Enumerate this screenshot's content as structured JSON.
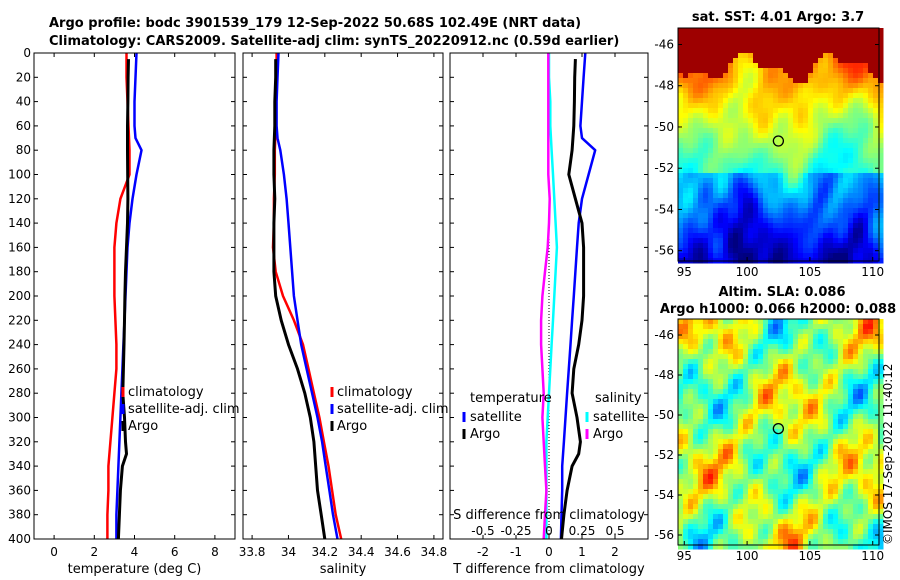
{
  "header": {
    "line1": "Argo profile: bodc 3901539_179 12-Sep-2022 50.68S 102.49E (NRT data)",
    "line2": "Climatology: CARS2009. Satellite-adj clim: synTS_20220912.nc (0.59d earlier)"
  },
  "copyright": "©IMOS 17-Sep-2022 11:40:12",
  "colors": {
    "climatology": "#ff0000",
    "satellite": "#0000ff",
    "argo": "#000000",
    "t_sat": "#00ffff",
    "s_diff": "#ff00ff"
  },
  "chart_data": [
    {
      "type": "line",
      "panel": "temperature",
      "xlabel": "temperature (deg C)",
      "ylabel": "",
      "xlim": [
        -1,
        9
      ],
      "ylim": [
        400,
        0
      ],
      "xticks": [
        "0",
        "2",
        "4",
        "6",
        "8"
      ],
      "xtick_values": [
        0,
        2,
        4,
        6,
        8
      ],
      "yticks": [
        "0",
        "20",
        "40",
        "60",
        "80",
        "100",
        "120",
        "140",
        "160",
        "180",
        "200",
        "220",
        "240",
        "260",
        "280",
        "300",
        "320",
        "340",
        "360",
        "380",
        "400"
      ],
      "ytick_values": [
        0,
        20,
        40,
        60,
        80,
        100,
        120,
        140,
        160,
        180,
        200,
        220,
        240,
        260,
        280,
        300,
        320,
        340,
        360,
        380,
        400
      ],
      "series": [
        {
          "name": "climatology",
          "color": "#ff0000",
          "width": 2.5,
          "depth": [
            0,
            20,
            40,
            60,
            80,
            100,
            120,
            140,
            160,
            180,
            200,
            220,
            240,
            260,
            280,
            300,
            320,
            340,
            360,
            380,
            400
          ],
          "values": [
            3.6,
            3.6,
            3.65,
            3.7,
            3.75,
            3.75,
            3.3,
            3.1,
            3.0,
            3.0,
            3.0,
            3.05,
            3.1,
            3.1,
            3.0,
            2.9,
            2.8,
            2.7,
            2.7,
            2.65,
            2.65
          ]
        },
        {
          "name": "satellite-adj. clim",
          "color": "#0000ff",
          "width": 2.5,
          "depth": [
            0,
            20,
            40,
            60,
            70,
            80,
            100,
            120,
            140,
            160,
            180,
            200,
            220,
            240,
            260,
            280,
            300,
            320,
            340,
            360,
            380,
            400
          ],
          "values": [
            4.1,
            4.05,
            4.0,
            4.0,
            4.05,
            4.35,
            4.1,
            3.9,
            3.75,
            3.65,
            3.6,
            3.55,
            3.5,
            3.45,
            3.4,
            3.35,
            3.3,
            3.25,
            3.2,
            3.15,
            3.1,
            3.1
          ]
        },
        {
          "name": "Argo",
          "color": "#000000",
          "width": 3,
          "depth": [
            5,
            20,
            40,
            60,
            80,
            100,
            120,
            140,
            160,
            180,
            200,
            220,
            240,
            260,
            280,
            300,
            320,
            330,
            340,
            360,
            380,
            400
          ],
          "values": [
            3.7,
            3.68,
            3.67,
            3.65,
            3.65,
            3.66,
            3.67,
            3.65,
            3.6,
            3.55,
            3.52,
            3.5,
            3.48,
            3.45,
            3.42,
            3.5,
            3.55,
            3.6,
            3.4,
            3.3,
            3.25,
            3.2
          ]
        }
      ],
      "legend": [
        "climatology",
        "satellite-adj. clim",
        "Argo"
      ]
    },
    {
      "type": "line",
      "panel": "salinity",
      "xlabel": "salinity",
      "xlim": [
        33.75,
        34.85
      ],
      "ylim": [
        400,
        0
      ],
      "xticks": [
        "33.8",
        "34",
        "34.2",
        "34.4",
        "34.6",
        "34.8"
      ],
      "xtick_values": [
        33.8,
        34.0,
        34.2,
        34.4,
        34.6,
        34.8
      ],
      "series": [
        {
          "name": "climatology",
          "color": "#ff0000",
          "width": 2.5,
          "depth": [
            0,
            20,
            40,
            60,
            80,
            100,
            120,
            140,
            160,
            180,
            200,
            220,
            240,
            260,
            280,
            300,
            320,
            340,
            360,
            380,
            400
          ],
          "values": [
            33.935,
            33.935,
            33.93,
            33.93,
            33.925,
            33.925,
            33.92,
            33.92,
            33.915,
            33.93,
            33.97,
            34.03,
            34.08,
            34.11,
            34.14,
            34.17,
            34.195,
            34.22,
            34.24,
            34.26,
            34.29
          ]
        },
        {
          "name": "satellite-adj. clim",
          "color": "#0000ff",
          "width": 2.5,
          "depth": [
            0,
            20,
            40,
            60,
            70,
            80,
            100,
            120,
            140,
            160,
            180,
            200,
            220,
            240,
            260,
            280,
            300,
            320,
            340,
            360,
            380,
            400
          ],
          "values": [
            33.945,
            33.94,
            33.935,
            33.935,
            33.94,
            33.955,
            33.975,
            33.99,
            34.0,
            34.01,
            34.02,
            34.03,
            34.05,
            34.07,
            34.1,
            34.13,
            34.16,
            34.185,
            34.205,
            34.225,
            34.245,
            34.27
          ]
        },
        {
          "name": "Argo",
          "color": "#000000",
          "width": 3,
          "depth": [
            5,
            20,
            40,
            60,
            80,
            100,
            120,
            140,
            160,
            180,
            200,
            220,
            240,
            260,
            280,
            300,
            320,
            340,
            360,
            380,
            400
          ],
          "values": [
            33.93,
            33.93,
            33.925,
            33.925,
            33.92,
            33.92,
            33.925,
            33.92,
            33.92,
            33.92,
            33.93,
            33.96,
            34.0,
            34.05,
            34.09,
            34.12,
            34.14,
            34.15,
            34.16,
            34.18,
            34.2
          ]
        }
      ],
      "legend": [
        "climatology",
        "satellite-adj. clim",
        "Argo"
      ]
    },
    {
      "type": "line",
      "panel": "difference",
      "xlabel": "T difference from climatology",
      "xlim": [
        -3,
        3
      ],
      "ylim": [
        400,
        0
      ],
      "xticks": [
        "-2",
        "-1",
        "0",
        "1",
        "2"
      ],
      "xtick_values": [
        -2,
        -1,
        0,
        1,
        2
      ],
      "top_label": "S difference from climatology",
      "top_ticks": [
        "-0.5",
        "-0.25",
        "0",
        "0.25",
        "0.5"
      ],
      "top_tick_values": [
        -0.5,
        -0.25,
        0,
        0.25,
        0.5
      ],
      "series": [
        {
          "name": "temperature satellite",
          "color": "#0000ff",
          "width": 2.5,
          "depth": [
            0,
            20,
            40,
            60,
            70,
            80,
            100,
            120,
            140,
            160,
            180,
            200,
            220,
            240,
            260,
            280,
            300,
            320,
            340,
            360,
            380,
            400
          ],
          "values": [
            1.1,
            1.05,
            1.0,
            0.95,
            1.0,
            1.4,
            1.2,
            1.0,
            0.9,
            0.85,
            0.8,
            0.75,
            0.7,
            0.65,
            0.6,
            0.55,
            0.5,
            0.45,
            0.4,
            0.4,
            0.38,
            0.36
          ]
        },
        {
          "name": "temperature Argo",
          "color": "#000000",
          "width": 3,
          "depth": [
            5,
            20,
            40,
            60,
            80,
            100,
            120,
            140,
            160,
            180,
            200,
            220,
            240,
            260,
            280,
            300,
            320,
            330,
            340,
            360,
            380,
            400
          ],
          "values": [
            0.8,
            0.78,
            0.77,
            0.75,
            0.7,
            0.6,
            0.8,
            1.0,
            1.05,
            1.05,
            1.05,
            1.0,
            0.9,
            0.75,
            0.7,
            0.85,
            0.95,
            0.9,
            0.7,
            0.55,
            0.45,
            0.38
          ]
        },
        {
          "name": "salinity satellite",
          "color": "#00ffff",
          "width": 2.5,
          "depth": [
            0,
            20,
            40,
            60,
            80,
            100,
            120,
            140,
            160,
            180,
            200,
            220,
            240,
            260,
            280,
            300,
            320,
            340,
            360,
            380,
            400
          ],
          "values": [
            0.0,
            0.0,
            0.01,
            0.01,
            0.02,
            0.03,
            0.04,
            0.05,
            0.06,
            0.05,
            0.04,
            0.03,
            0.02,
            0.01,
            0.0,
            -0.01,
            -0.02,
            -0.02,
            -0.02,
            -0.02,
            -0.02
          ]
        },
        {
          "name": "salinity Argo",
          "color": "#ff00ff",
          "width": 2.5,
          "depth": [
            0,
            20,
            40,
            60,
            80,
            100,
            120,
            140,
            160,
            180,
            200,
            220,
            240,
            260,
            280,
            300,
            320,
            340,
            360,
            380,
            400
          ],
          "values": [
            -0.005,
            -0.005,
            -0.005,
            -0.005,
            -0.005,
            -0.005,
            0.005,
            0.0,
            -0.01,
            -0.03,
            -0.05,
            -0.06,
            -0.06,
            -0.05,
            -0.04,
            -0.05,
            -0.04,
            -0.03,
            -0.02,
            -0.03,
            -0.04
          ]
        }
      ],
      "legend_t": {
        "title": "temperature",
        "items": [
          "satellite",
          "Argo"
        ]
      },
      "legend_s": {
        "title": "salinity",
        "items": [
          "satellite",
          "Argo"
        ]
      }
    },
    {
      "type": "heatmap",
      "panel": "sst_map",
      "title": "sat. SST: 4.01 Argo: 3.7",
      "xlim": [
        94.5,
        110.5
      ],
      "ylim": [
        -56.5,
        -45.2
      ],
      "xticks": [
        "95",
        "100",
        "105",
        "110"
      ],
      "xtick_values": [
        95,
        100,
        105,
        110
      ],
      "yticks": [
        "-46",
        "-48",
        "-50",
        "-52",
        "-54",
        "-56"
      ],
      "ytick_values": [
        -46,
        -48,
        -50,
        -52,
        -54,
        -56
      ],
      "argo_position": [
        102.49,
        -50.68
      ]
    },
    {
      "type": "heatmap",
      "panel": "sla_map",
      "title": "Altim. SLA: 0.086",
      "subtitle": "Argo h1000: 0.066 h2000: 0.088",
      "xlim": [
        94.5,
        110.5
      ],
      "ylim": [
        -56.5,
        -45.2
      ],
      "xticks": [
        "95",
        "100",
        "105",
        "110"
      ],
      "xtick_values": [
        95,
        100,
        105,
        110
      ],
      "yticks": [
        "-46",
        "-48",
        "-50",
        "-52",
        "-54",
        "-56"
      ],
      "ytick_values": [
        -46,
        -48,
        -50,
        -52,
        -54,
        -56
      ],
      "argo_position": [
        102.49,
        -50.68
      ]
    }
  ]
}
